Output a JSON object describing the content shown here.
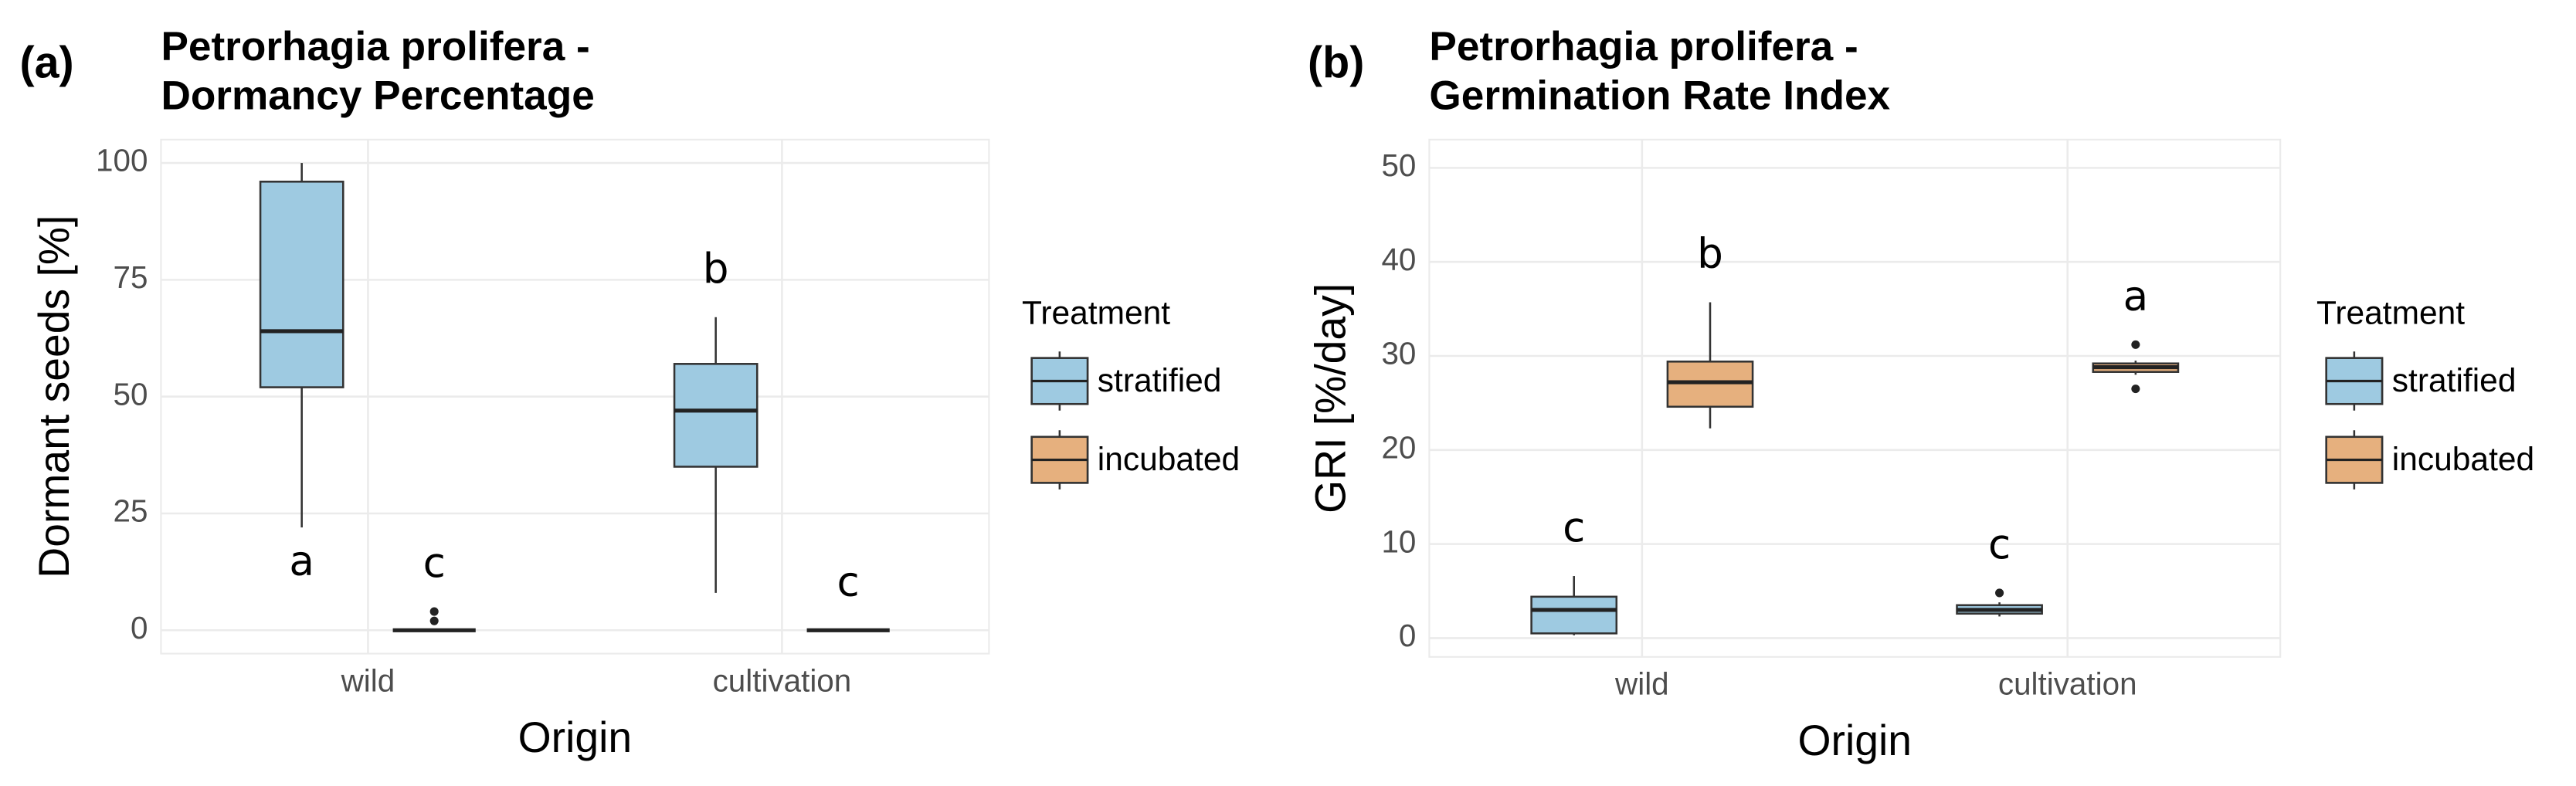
{
  "chart_data": [
    {
      "type": "box",
      "panel": "(a)",
      "title": [
        "Petrorhagia prolifera -",
        "Dormancy Percentage"
      ],
      "x_label": "Origin",
      "y_label": "Dormant seeds [%]",
      "legend_title": "Treatment",
      "categories": [
        "wild",
        "cultivation"
      ],
      "ylim": [
        -5,
        105
      ],
      "yticks": [
        0,
        25,
        50,
        75,
        100
      ],
      "grid": true,
      "series": [
        {
          "name": "stratified",
          "color": "#9ecae1",
          "letters": [
            "a",
            "b"
          ],
          "boxes": [
            {
              "min": 22,
              "q1": 52,
              "median": 64,
              "q3": 96,
              "max": 100,
              "outliers": []
            },
            {
              "min": 8,
              "q1": 35,
              "median": 47,
              "q3": 57,
              "max": 67,
              "outliers": []
            }
          ]
        },
        {
          "name": "incubated",
          "color": "#e6b07e",
          "letters": [
            "c",
            "c"
          ],
          "boxes": [
            {
              "min": 0,
              "q1": 0,
              "median": 0,
              "q3": 0,
              "max": 0,
              "outliers": [
                2,
                4
              ]
            },
            {
              "min": 0,
              "q1": 0,
              "median": 0,
              "q3": 0,
              "max": 0,
              "outliers": []
            }
          ]
        }
      ]
    },
    {
      "type": "box",
      "panel": "(b)",
      "title": [
        "Petrorhagia prolifera -",
        "Germination Rate Index"
      ],
      "x_label": "Origin",
      "y_label": "GRI [%/day]",
      "legend_title": "Treatment",
      "categories": [
        "wild",
        "cultivation"
      ],
      "ylim": [
        -2,
        53
      ],
      "yticks": [
        0,
        10,
        20,
        30,
        40,
        50
      ],
      "grid": true,
      "series": [
        {
          "name": "stratified",
          "color": "#9ecae1",
          "letters": [
            "c",
            "c"
          ],
          "boxes": [
            {
              "min": 0.3,
              "q1": 0.5,
              "median": 3,
              "q3": 4.4,
              "max": 6.6,
              "outliers": []
            },
            {
              "min": 2.3,
              "q1": 2.6,
              "median": 3,
              "q3": 3.5,
              "max": 3.8,
              "outliers": [
                4.8
              ]
            }
          ]
        },
        {
          "name": "incubated",
          "color": "#e6b07e",
          "letters": [
            "b",
            "a"
          ],
          "boxes": [
            {
              "min": 22.3,
              "q1": 24.6,
              "median": 27.2,
              "q3": 29.4,
              "max": 35.7,
              "outliers": []
            },
            {
              "min": 28,
              "q1": 28.3,
              "median": 28.8,
              "q3": 29.2,
              "max": 29.5,
              "outliers": [
                31.2,
                26.5
              ]
            }
          ]
        }
      ]
    }
  ]
}
